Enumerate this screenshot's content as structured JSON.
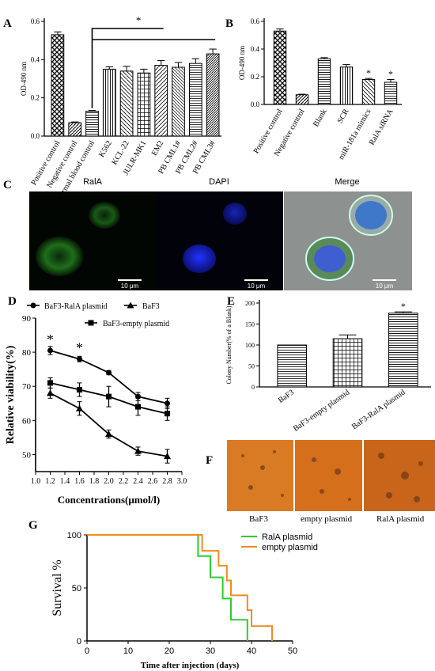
{
  "panel_letters": {
    "A": "A",
    "B": "B",
    "C": "C",
    "D": "D",
    "E": "E",
    "F": "F",
    "G": "G"
  },
  "colors": {
    "green_fluor": "#1f6e1a",
    "blue_fluor": "#1c2fd0",
    "colony_bg": "#d9731e",
    "series_ralA": "#2ecc2e",
    "series_empty": "#f08a24"
  },
  "chart_data": [
    {
      "id": "A",
      "type": "bar",
      "categories": [
        "Positive control",
        "Negative control",
        "Normal blood control",
        "K562",
        "KCL-22",
        "JULR-MK1",
        "EM2",
        "PB CML1#",
        "PB CML2#",
        "PB CML3#"
      ],
      "values": [
        0.53,
        0.07,
        0.13,
        0.35,
        0.34,
        0.33,
        0.37,
        0.36,
        0.38,
        0.43
      ],
      "errors": [
        0.015,
        0.004,
        0.004,
        0.012,
        0.025,
        0.02,
        0.025,
        0.025,
        0.025,
        0.025
      ],
      "ylabel": "OD-490 nm",
      "ylim": [
        0,
        0.6
      ],
      "yticks": [
        "0.0",
        "0.2",
        "0.4",
        "0.6"
      ],
      "significance": "*"
    },
    {
      "id": "B",
      "type": "bar",
      "categories": [
        "Positive control",
        "Negative control",
        "Blank",
        "SCR",
        "miR-181a mimics",
        "RalA siRNA"
      ],
      "values": [
        0.53,
        0.07,
        0.33,
        0.27,
        0.18,
        0.16
      ],
      "errors": [
        0.015,
        0.004,
        0.008,
        0.018,
        0.008,
        0.02
      ],
      "ylabel": "OD-490 nm",
      "ylim": [
        0,
        0.6
      ],
      "yticks": [
        "0.0",
        "0.2",
        "0.4",
        "0.6"
      ],
      "stars": [
        "",
        "",
        "",
        "",
        "*",
        "*"
      ]
    },
    {
      "id": "D",
      "type": "line",
      "ylabel": "Relative viability(%)",
      "xlabel": "Concentrations(μmol/l)",
      "xlim": [
        1.0,
        3.0
      ],
      "ylim": [
        45,
        90
      ],
      "xticks": [
        "1.0",
        "1.2",
        "1.4",
        "1.6",
        "1.8",
        "2.0",
        "2.2",
        "2.4",
        "2.6",
        "2.8",
        "3.0"
      ],
      "yticks": [
        "50",
        "60",
        "70",
        "80",
        "90"
      ],
      "x": [
        1.2,
        1.6,
        2.0,
        2.4,
        2.8
      ],
      "series": [
        {
          "name": "BaF3-RalA plasmid",
          "marker": "circle",
          "values": [
            80.5,
            78,
            74,
            67,
            65
          ],
          "errors": [
            1.2,
            0.8,
            0.6,
            1.2,
            1.5
          ]
        },
        {
          "name": "BaF3-empty plasmid",
          "marker": "square",
          "values": [
            71,
            69,
            67,
            64,
            62
          ],
          "errors": [
            1.5,
            2,
            3,
            2.5,
            2
          ]
        },
        {
          "name": "BaF3",
          "marker": "triangle",
          "values": [
            68,
            63.5,
            56,
            51,
            49.5
          ],
          "errors": [
            1.5,
            2,
            1.2,
            1.2,
            2
          ]
        }
      ],
      "stars": [
        {
          "x": 1.2,
          "text": "*"
        },
        {
          "x": 1.6,
          "text": "*"
        }
      ]
    },
    {
      "id": "E",
      "type": "bar",
      "categories": [
        "BaF3",
        "BaF3-empty plasmid",
        "BaF3-RalA plasmid"
      ],
      "values": [
        100,
        115,
        176
      ],
      "errors": [
        0,
        9,
        3
      ],
      "ylabel": "Colony Number(% of a Blank)",
      "ylim": [
        0,
        200
      ],
      "yticks": [
        "0",
        "50",
        "100",
        "150",
        "200"
      ],
      "stars": [
        "",
        "",
        "*"
      ]
    },
    {
      "id": "G",
      "type": "line",
      "ylabel": "Survival    %",
      "xlabel": "Time after injection (days)",
      "xlim": [
        0,
        50
      ],
      "ylim": [
        0,
        100
      ],
      "xticks": [
        "0",
        "10",
        "20",
        "30",
        "40",
        "50"
      ],
      "yticks": [
        "0",
        "50",
        "100"
      ],
      "series": [
        {
          "name": "RalA plasmid",
          "steps": [
            [
              0,
              100
            ],
            [
              27,
              100
            ],
            [
              27,
              80
            ],
            [
              30,
              80
            ],
            [
              30,
              60
            ],
            [
              33,
              60
            ],
            [
              33,
              40
            ],
            [
              35,
              40
            ],
            [
              35,
              20
            ],
            [
              39,
              20
            ],
            [
              39,
              0
            ]
          ]
        },
        {
          "name": "empty plasmid",
          "steps": [
            [
              0,
              100
            ],
            [
              28,
              100
            ],
            [
              28,
              85
            ],
            [
              32,
              85
            ],
            [
              32,
              71
            ],
            [
              34,
              71
            ],
            [
              34,
              57
            ],
            [
              35,
              57
            ],
            [
              35,
              43
            ],
            [
              39,
              43
            ],
            [
              39,
              29
            ],
            [
              40,
              29
            ],
            [
              40,
              14
            ],
            [
              45,
              14
            ],
            [
              45,
              0
            ]
          ]
        }
      ]
    }
  ],
  "panel_c": {
    "titles": [
      "RalA",
      "DAPI",
      "Merge"
    ],
    "scale_bar": "10 μm"
  },
  "panel_f": {
    "labels": [
      "BaF3",
      "empty plasmid",
      "RalA plasmid"
    ]
  }
}
